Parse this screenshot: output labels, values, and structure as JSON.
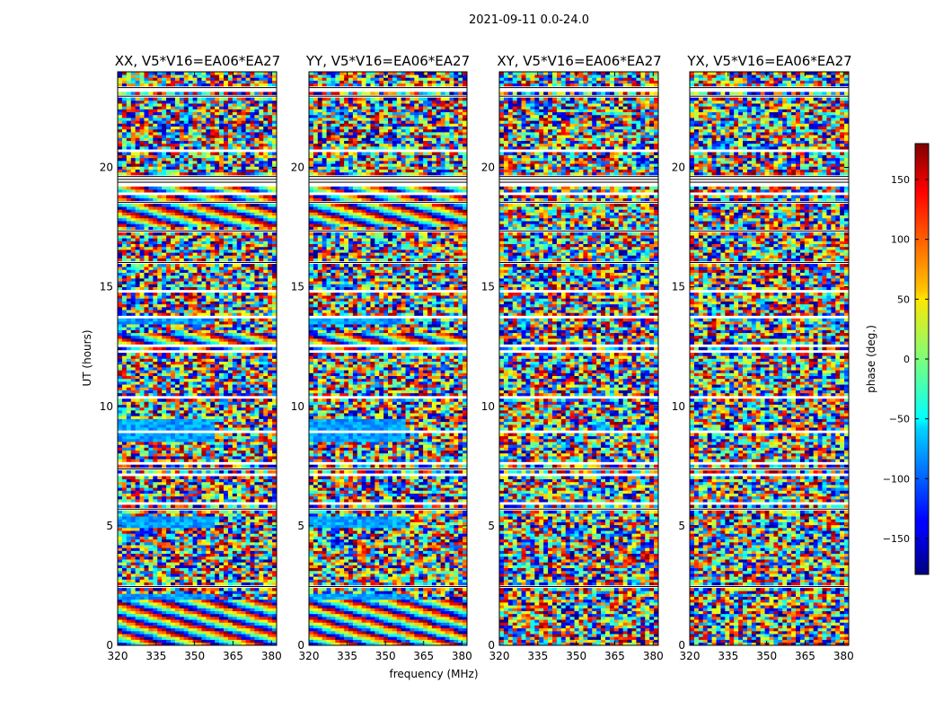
{
  "chart_data": {
    "type": "heatmap",
    "title": "2021-09-11 0.0-24.0",
    "xlabel": "frequency (MHz)",
    "ylabel": "UT (hours)",
    "xlim": [
      320,
      382
    ],
    "ylim": [
      0,
      24
    ],
    "xticks": [
      "320",
      "335",
      "350",
      "365",
      "380"
    ],
    "yticks": [
      "0",
      "5",
      "10",
      "15",
      "20"
    ],
    "panels": [
      {
        "title": "XX, V5*V16=EA06*EA27"
      },
      {
        "title": "YY, V5*V16=EA06*EA27"
      },
      {
        "title": "XY, V5*V16=EA06*EA27"
      },
      {
        "title": "YX, V5*V16=EA06*EA27"
      }
    ],
    "colorbar": {
      "label": "phase (deg.)",
      "range": [
        -180,
        180
      ],
      "ticks": [
        "−150",
        "−100",
        "−50",
        "0",
        "50",
        "100",
        "150"
      ],
      "colormap": "jet"
    }
  }
}
